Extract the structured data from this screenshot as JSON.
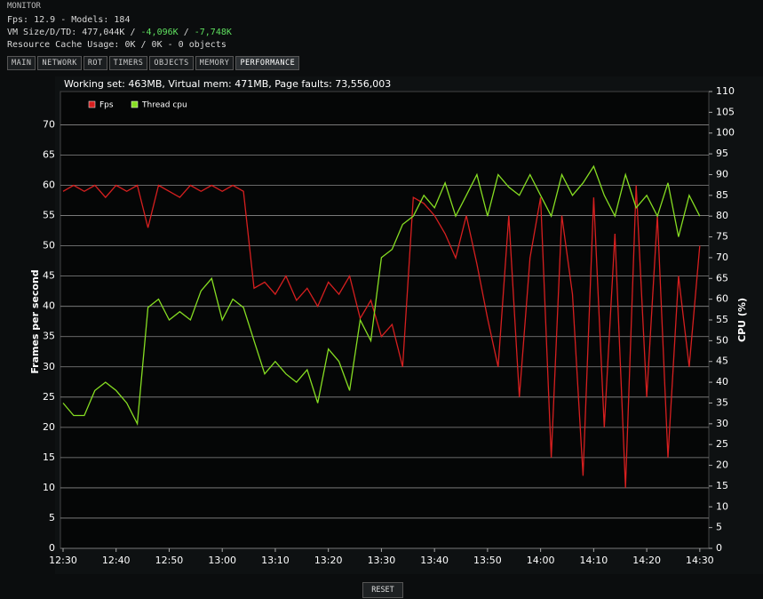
{
  "window": {
    "title": "MONITOR",
    "fps_line": "Fps: 12.9 - Models: 184",
    "vm_line": [
      "VM Size/D/TD: 477,044K / ",
      "-4,096K",
      " / ",
      "-7,748K"
    ],
    "cache_line": "Resource Cache Usage: 0K / 0K - 0 objects",
    "tabs": [
      "MAIN",
      "NETWORK",
      "ROT",
      "TIMERS",
      "OBJECTS",
      "MEMORY",
      "PERFORMANCE"
    ],
    "reset_button": "RESET"
  },
  "chart_data": {
    "type": "line",
    "title": "Working set: 463MB, Virtual mem: 471MB, Page faults: 73,556,003",
    "y_label": "Frames per second",
    "y2_label": "CPU (%)",
    "x": [
      0,
      2,
      4,
      6,
      8,
      10,
      12,
      14,
      16,
      18,
      20,
      22,
      24,
      26,
      28,
      30,
      32,
      34,
      36,
      38,
      40,
      42,
      44,
      46,
      48,
      50,
      52,
      54,
      56,
      58,
      60,
      62,
      64,
      66,
      68,
      70,
      72,
      74,
      76,
      78,
      80,
      82,
      84,
      86,
      88,
      90,
      92,
      94,
      96,
      98,
      100,
      102,
      104,
      106,
      108,
      110,
      112,
      114,
      116,
      118,
      120
    ],
    "xlim": [
      -0.5,
      121.7
    ],
    "xticks": [
      {
        "value": 0,
        "label": "12:30"
      },
      {
        "value": 10,
        "label": "12:40"
      },
      {
        "value": 20,
        "label": "12:50"
      },
      {
        "value": 30,
        "label": "13:00"
      },
      {
        "value": 40,
        "label": "13:10"
      },
      {
        "value": 50,
        "label": "13:20"
      },
      {
        "value": 60,
        "label": "13:30"
      },
      {
        "value": 70,
        "label": "13:40"
      },
      {
        "value": 80,
        "label": "13:50"
      },
      {
        "value": 90,
        "label": "14:00"
      },
      {
        "value": 100,
        "label": "14:10"
      },
      {
        "value": 110,
        "label": "14:20"
      },
      {
        "value": 120,
        "label": "14:30"
      }
    ],
    "ylim": [
      0,
      75.5
    ],
    "yticks": [
      0,
      5,
      10,
      15,
      20,
      25,
      30,
      35,
      40,
      45,
      50,
      55,
      60,
      65,
      70
    ],
    "y2lim": [
      0,
      110
    ],
    "y2ticks": [
      0,
      5,
      10,
      15,
      20,
      25,
      30,
      35,
      40,
      45,
      50,
      55,
      60,
      65,
      70,
      75,
      80,
      85,
      90,
      95,
      100,
      105,
      110
    ],
    "grid": true,
    "legend": "top-left",
    "series": [
      {
        "name": "Fps",
        "color": "#d61f1f",
        "values": [
          59,
          60,
          59,
          60,
          58,
          60,
          59,
          60,
          53,
          60,
          59,
          58,
          60,
          59,
          60,
          59,
          60,
          59,
          43,
          44,
          42,
          45,
          41,
          43,
          40,
          44,
          42,
          45,
          38,
          41,
          35,
          37,
          30,
          58,
          57,
          55,
          52,
          48,
          55,
          47,
          38,
          30,
          55,
          25,
          48,
          58,
          15,
          55,
          42,
          12,
          58,
          20,
          52,
          10,
          60,
          25,
          55,
          15,
          45,
          30,
          50
        ]
      },
      {
        "name": "Thread cpu",
        "color": "#86dd22",
        "axis": "y2",
        "values": [
          35,
          32,
          32,
          38,
          40,
          38,
          35,
          30,
          58,
          60,
          55,
          57,
          55,
          62,
          65,
          55,
          60,
          58,
          50,
          42,
          45,
          42,
          40,
          43,
          35,
          48,
          45,
          38,
          55,
          50,
          70,
          72,
          78,
          80,
          85,
          82,
          88,
          80,
          85,
          90,
          80,
          90,
          87,
          85,
          90,
          85,
          80,
          90,
          85,
          88,
          92,
          85,
          80,
          90,
          82,
          85,
          80,
          88,
          75,
          85,
          80
        ]
      }
    ]
  }
}
